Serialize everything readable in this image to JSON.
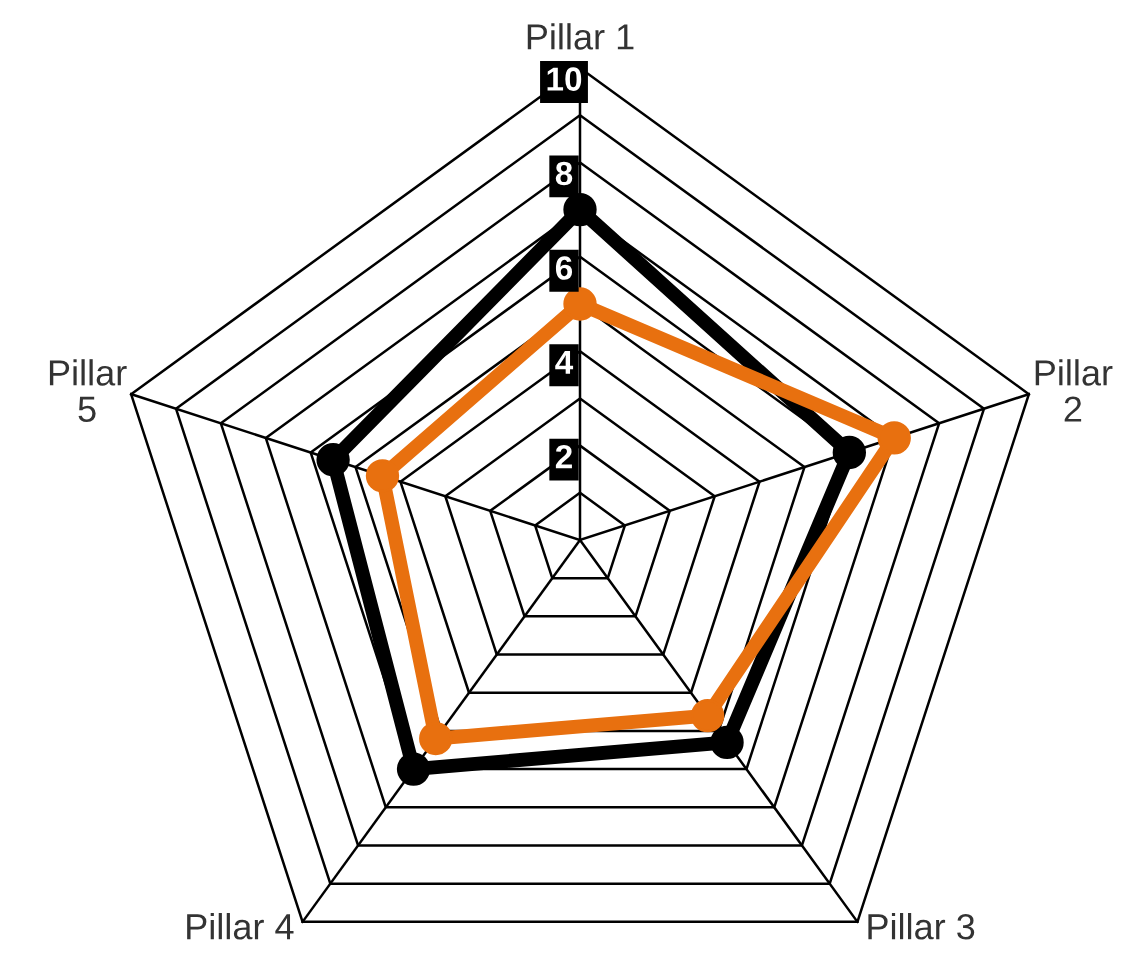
{
  "chart_data": {
    "type": "radar",
    "categories": [
      "Pillar 1",
      "Pillar\n2",
      "Pillar 3",
      "Pillar 4",
      "Pillar\n5"
    ],
    "ylim": [
      0,
      10
    ],
    "yticks": [
      2,
      4,
      6,
      8,
      10
    ],
    "grid": true,
    "marker": "circle",
    "line_style": "solid",
    "series": [
      {
        "color": "#000000",
        "values": [
          7,
          6,
          5.3,
          6,
          5.5
        ]
      },
      {
        "color": "#e8700f",
        "values": [
          5,
          7,
          4.6,
          5.2,
          4.4
        ]
      }
    ]
  }
}
